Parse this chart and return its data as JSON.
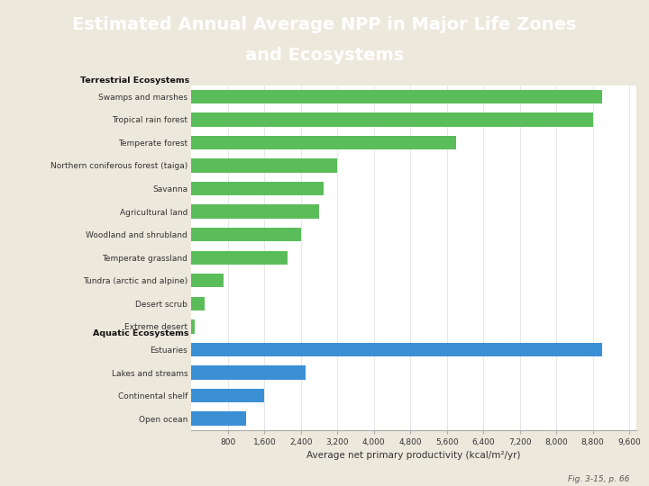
{
  "title_line1": "Estimated Annual Average NPP in Major Life Zones",
  "title_line2": "and Ecosystems",
  "title_bg_color": "#1F3864",
  "title_text_color": "#FFFFFF",
  "chart_bg_color": "#EDE8DC",
  "plot_bg_color": "#FFFFFF",
  "xlabel": "Average net primary productivity (kcal/m²/yr)",
  "categories": [
    "Swamps and marshes",
    "Tropical rain forest",
    "Temperate forest",
    "Northern coniferous forest (taiga)",
    "Savanna",
    "Agricultural land",
    "Woodland and shrubland",
    "Temperate grassland",
    "Tundra (arctic and alpine)",
    "Desert scrub",
    "Extreme desert",
    "Estuaries",
    "Lakes and streams",
    "Continental shelf",
    "Open ocean"
  ],
  "values": [
    9000,
    8800,
    5800,
    3200,
    2900,
    2800,
    2400,
    2100,
    700,
    280,
    70,
    9000,
    2500,
    1600,
    1200
  ],
  "colors": [
    "#5BBD5A",
    "#5BBD5A",
    "#5BBD5A",
    "#5BBD5A",
    "#5BBD5A",
    "#5BBD5A",
    "#5BBD5A",
    "#5BBD5A",
    "#5BBD5A",
    "#5BBD5A",
    "#5BBD5A",
    "#3B8FD4",
    "#3B8FD4",
    "#3B8FD4",
    "#3B8FD4"
  ],
  "xticks": [
    800,
    1600,
    2400,
    3200,
    4000,
    4800,
    5600,
    6400,
    7200,
    8000,
    8800,
    9600
  ],
  "xlim": [
    0,
    9750
  ],
  "fig_note": "Fig. 3-15, p. 66"
}
